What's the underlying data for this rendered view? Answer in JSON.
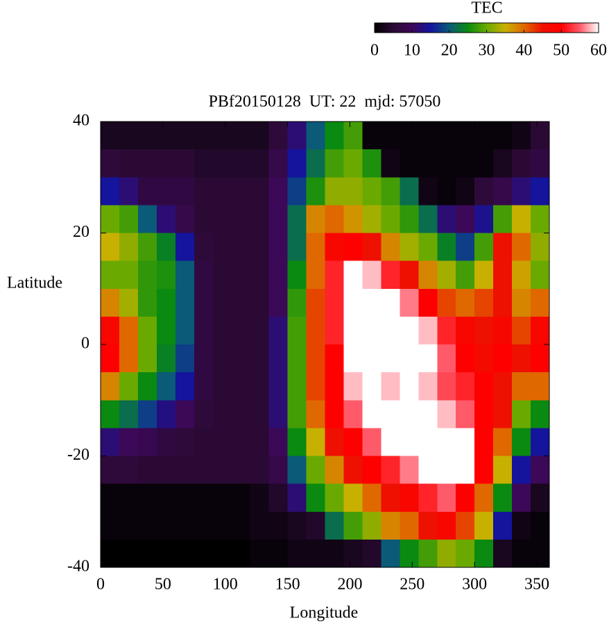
{
  "chart_data": {
    "type": "heatmap",
    "title": "PBf20150128  UT: 22  mjd: 57050",
    "xlabel": "Longitude",
    "ylabel": "Latitude",
    "colorbar_label": "TEC",
    "xlim": [
      0,
      360
    ],
    "xticks": [
      0,
      50,
      100,
      150,
      200,
      250,
      300,
      350
    ],
    "ylim": [
      -40,
      40
    ],
    "yticks": [
      -40,
      -20,
      0,
      20,
      40
    ],
    "clim": [
      0,
      60
    ],
    "cticks": [
      0,
      10,
      20,
      30,
      40,
      50,
      60
    ],
    "colormap": [
      "#000000",
      "#2a0a34",
      "#3c0858",
      "#14149c",
      "#0a5a78",
      "#0a8a10",
      "#6aaa00",
      "#c8b000",
      "#e06800",
      "#ee1000",
      "#ff0000",
      "#ff5a6a",
      "#ffffff"
    ],
    "x": [
      7.5,
      22.5,
      37.5,
      52.5,
      67.5,
      82.5,
      97.5,
      112.5,
      127.5,
      142.5,
      157.5,
      172.5,
      187.5,
      202.5,
      217.5,
      232.5,
      247.5,
      262.5,
      277.5,
      292.5,
      307.5,
      322.5,
      337.5,
      352.5
    ],
    "y": [
      37.5,
      32.5,
      27.5,
      22.5,
      17.5,
      12.5,
      7.5,
      2.5,
      -2.5,
      -7.5,
      -12.5,
      -17.5,
      -22.5,
      -27.5,
      -32.5,
      -37.5
    ],
    "values": [
      [
        3,
        3,
        3,
        3,
        3,
        3,
        3,
        3,
        3,
        6,
        12,
        20,
        25,
        28,
        1,
        1,
        1,
        1,
        1,
        1,
        1,
        1,
        2,
        5
      ],
      [
        6,
        5,
        5,
        5,
        5,
        4,
        4,
        4,
        4,
        8,
        15,
        22,
        28,
        30,
        26,
        2,
        1,
        1,
        1,
        1,
        1,
        3,
        5,
        7
      ],
      [
        15,
        12,
        7,
        7,
        7,
        5,
        5,
        5,
        5,
        10,
        18,
        26,
        32,
        32,
        30,
        28,
        22,
        2,
        1,
        2,
        6,
        8,
        12,
        15
      ],
      [
        30,
        28,
        20,
        12,
        8,
        5,
        5,
        5,
        5,
        10,
        22,
        38,
        40,
        37,
        33,
        30,
        27,
        22,
        12,
        10,
        14,
        28,
        35,
        30
      ],
      [
        35,
        32,
        28,
        24,
        15,
        6,
        5,
        5,
        5,
        10,
        22,
        40,
        48,
        50,
        45,
        38,
        33,
        30,
        24,
        18,
        28,
        45,
        40,
        32
      ],
      [
        30,
        30,
        27,
        26,
        20,
        7,
        5,
        5,
        5,
        10,
        25,
        40,
        52,
        60,
        58,
        52,
        45,
        38,
        33,
        28,
        35,
        45,
        36,
        30
      ],
      [
        38,
        33,
        27,
        25,
        20,
        7,
        5,
        5,
        5,
        10,
        27,
        42,
        52,
        60,
        60,
        60,
        56,
        50,
        42,
        40,
        42,
        45,
        38,
        40
      ],
      [
        48,
        40,
        30,
        25,
        20,
        7,
        5,
        5,
        5,
        12,
        28,
        42,
        52,
        60,
        60,
        60,
        60,
        58,
        52,
        48,
        45,
        48,
        42,
        48
      ],
      [
        50,
        40,
        30,
        24,
        18,
        7,
        5,
        5,
        5,
        12,
        28,
        42,
        50,
        60,
        60,
        60,
        60,
        60,
        55,
        50,
        47,
        50,
        45,
        50
      ],
      [
        38,
        30,
        25,
        20,
        15,
        7,
        5,
        5,
        5,
        12,
        28,
        42,
        50,
        58,
        60,
        58,
        60,
        58,
        54,
        52,
        50,
        45,
        40,
        40
      ],
      [
        25,
        22,
        18,
        13,
        10,
        6,
        5,
        5,
        5,
        12,
        28,
        40,
        50,
        55,
        60,
        60,
        60,
        60,
        58,
        55,
        50,
        45,
        30,
        25
      ],
      [
        12,
        10,
        9,
        7,
        6,
        5,
        5,
        5,
        5,
        10,
        25,
        35,
        45,
        50,
        55,
        60,
        60,
        60,
        60,
        60,
        50,
        40,
        25,
        15
      ],
      [
        6,
        6,
        5,
        5,
        5,
        5,
        5,
        5,
        5,
        8,
        20,
        30,
        38,
        45,
        50,
        52,
        56,
        60,
        60,
        60,
        50,
        35,
        15,
        10
      ],
      [
        1,
        1,
        1,
        1,
        1,
        1,
        1,
        1,
        2,
        4,
        12,
        25,
        30,
        35,
        40,
        45,
        48,
        52,
        55,
        50,
        40,
        25,
        10,
        3
      ],
      [
        1,
        1,
        1,
        1,
        1,
        1,
        1,
        1,
        2,
        2,
        3,
        4,
        22,
        28,
        32,
        38,
        40,
        45,
        48,
        42,
        35,
        15,
        2,
        1
      ],
      [
        0,
        0,
        0,
        0,
        0,
        0,
        0,
        0,
        1,
        1,
        2,
        2,
        2,
        3,
        4,
        20,
        25,
        28,
        32,
        30,
        25,
        3,
        1,
        1
      ]
    ]
  }
}
